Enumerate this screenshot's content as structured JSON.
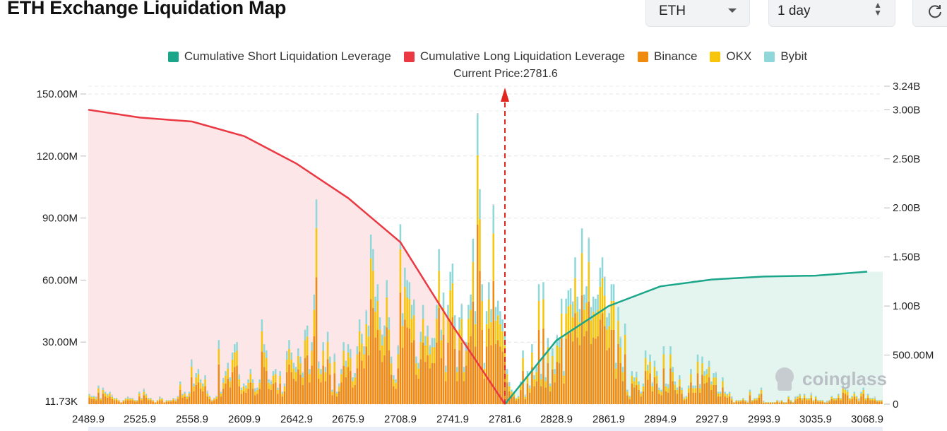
{
  "header": {
    "title": "ETH Exchange Liquidation Map",
    "coin_select": "ETH",
    "range_select": "1 day"
  },
  "legend": [
    {
      "label": "Cumulative Short Liquidation Leverage",
      "color": "#1ba68a"
    },
    {
      "label": "Cumulative Long Liquidation Leverage",
      "color": "#ea3943"
    },
    {
      "label": "Binance",
      "color": "#f08a0e"
    },
    {
      "label": "OKX",
      "color": "#f6c50c"
    },
    {
      "label": "Bybit",
      "color": "#8fd7d9"
    }
  ],
  "watermark": "coinglass",
  "chart_data": {
    "type": "bar",
    "current_price_label": "Current Price:2781.6",
    "current_price": 2781.6,
    "x_ticks": [
      "2489.9",
      "2525.9",
      "2558.9",
      "2609.9",
      "2642.9",
      "2675.9",
      "2708.9",
      "2741.9",
      "2781.6",
      "2828.9",
      "2861.9",
      "2894.9",
      "2927.9",
      "2993.9",
      "3035.9",
      "3068.9"
    ],
    "y_left_ticks": [
      "11.73K",
      "30.00M",
      "60.00M",
      "90.00M",
      "120.00M",
      "150.00M"
    ],
    "y_left_values": [
      0.01173,
      30,
      60,
      90,
      120,
      150
    ],
    "y_left_unit": "M",
    "y_right_ticks": [
      "0",
      "500.00M",
      "1.00B",
      "1.50B",
      "2.00B",
      "2.50B",
      "3.00B",
      "3.24B"
    ],
    "y_right_values": [
      0,
      0.5,
      1.0,
      1.5,
      2.0,
      2.5,
      3.0,
      3.24
    ],
    "y_right_unit": "B",
    "bar_totals_M": [
      5,
      4,
      4,
      3,
      9,
      3,
      8,
      6,
      5,
      6,
      4,
      3,
      3,
      2,
      1,
      2,
      3,
      3,
      3,
      3,
      2,
      2,
      6,
      3,
      7,
      5,
      3,
      3,
      2,
      1,
      2,
      3,
      3,
      1,
      2,
      2,
      2,
      3,
      2,
      4,
      11,
      5,
      6,
      4,
      6,
      21,
      10,
      15,
      17,
      12,
      10,
      14,
      6,
      4,
      2,
      3,
      4,
      31,
      6,
      12,
      16,
      20,
      13,
      25,
      29,
      30,
      14,
      8,
      10,
      9,
      12,
      17,
      12,
      7,
      8,
      12,
      41,
      29,
      26,
      12,
      11,
      16,
      17,
      8,
      16,
      6,
      10,
      25,
      31,
      25,
      20,
      18,
      27,
      23,
      15,
      36,
      38,
      17,
      30,
      53,
      99,
      20,
      17,
      30,
      18,
      35,
      23,
      7,
      24,
      6,
      10,
      17,
      30,
      21,
      29,
      26,
      13,
      15,
      28,
      41,
      34,
      28,
      45,
      38,
      82,
      75,
      52,
      58,
      42,
      33,
      38,
      60,
      42,
      23,
      14,
      12,
      28,
      87,
      44,
      66,
      60,
      59,
      48,
      50,
      23,
      20,
      35,
      48,
      33,
      38,
      28,
      32,
      32,
      48,
      75,
      36,
      54,
      18,
      48,
      64,
      68,
      43,
      18,
      42,
      48,
      18,
      30,
      48,
      53,
      80,
      45,
      140,
      104,
      58,
      20,
      45,
      59,
      46,
      96,
      47,
      50,
      45,
      41,
      33,
      17,
      10,
      7,
      6,
      3,
      4,
      11,
      26,
      4,
      16,
      9,
      29,
      14,
      18,
      58,
      14,
      59,
      13,
      32,
      10,
      27,
      17,
      33,
      32,
      51,
      16,
      51,
      55,
      56,
      49,
      71,
      52,
      46,
      85,
      53,
      57,
      80,
      47,
      52,
      51,
      53,
      66,
      71,
      61,
      42,
      44,
      58,
      58,
      20,
      47,
      32,
      18,
      39,
      7,
      4,
      16,
      13,
      15,
      11,
      6,
      10,
      26,
      19,
      24,
      10,
      21,
      16,
      8,
      7,
      28,
      10,
      9,
      28,
      18,
      11,
      8,
      14,
      8,
      3,
      4,
      9,
      17,
      9,
      9,
      24,
      9,
      23,
      16,
      17,
      21,
      11,
      15,
      15,
      6,
      6,
      13,
      6,
      5,
      6,
      3,
      1,
      2,
      2,
      2,
      3,
      2,
      1,
      7,
      2,
      3,
      3,
      5,
      8,
      1,
      1,
      1,
      1,
      1,
      1,
      2,
      1,
      2,
      1,
      1,
      4,
      2,
      1,
      3,
      4,
      5,
      3,
      5,
      3,
      3,
      5,
      2,
      4,
      2,
      2,
      2,
      1,
      1,
      2,
      4,
      3,
      3,
      5,
      3,
      9,
      8,
      7,
      3,
      4,
      6,
      4,
      2,
      6,
      8,
      3,
      5,
      3,
      3,
      3,
      2,
      2,
      2
    ],
    "bar_totals_note": "Per-bar total liquidation leverage in millions (approx.), stacked Binance / OKX / Bybit",
    "cumulative_long_B": [
      [
        2489.9,
        3.0
      ],
      [
        2525.9,
        2.92
      ],
      [
        2558.9,
        2.88
      ],
      [
        2609.9,
        2.73
      ],
      [
        2642.9,
        2.45
      ],
      [
        2675.9,
        2.1
      ],
      [
        2708.9,
        1.65
      ],
      [
        2741.9,
        0.8
      ],
      [
        2781.6,
        0.0
      ]
    ],
    "cumulative_short_B": [
      [
        2781.6,
        0.0
      ],
      [
        2828.9,
        0.65
      ],
      [
        2861.9,
        1.0
      ],
      [
        2894.9,
        1.2
      ],
      [
        2927.9,
        1.27
      ],
      [
        2993.9,
        1.3
      ],
      [
        3035.9,
        1.31
      ],
      [
        3068.9,
        1.35
      ]
    ]
  }
}
